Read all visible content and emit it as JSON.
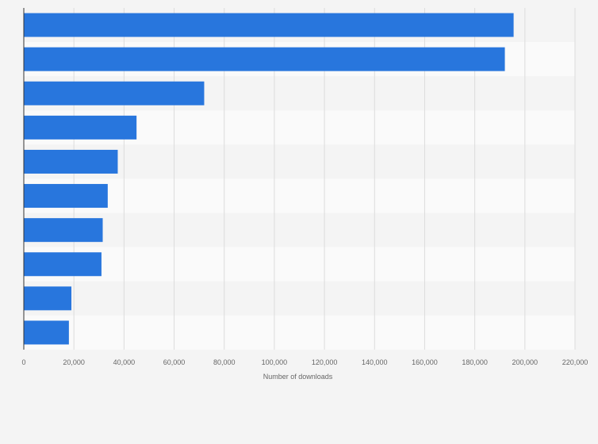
{
  "chart_data": {
    "type": "bar",
    "orientation": "horizontal",
    "categories": [
      "",
      "",
      "",
      "",
      "",
      "",
      "",
      "",
      "",
      ""
    ],
    "values": [
      195500,
      192000,
      72000,
      45000,
      37500,
      33500,
      31500,
      31000,
      19000,
      18000
    ],
    "xlabel": "Number of downloads",
    "xlim": [
      0,
      220000
    ],
    "xticks": [
      0,
      20000,
      40000,
      60000,
      80000,
      100000,
      120000,
      140000,
      160000,
      180000,
      200000,
      220000
    ],
    "xtick_labels": [
      "0",
      "20,000",
      "40,000",
      "60,000",
      "80,000",
      "100,000",
      "120,000",
      "140,000",
      "160,000",
      "180,000",
      "200,000",
      "220,000"
    ],
    "grid": true,
    "legend": "none",
    "bar_color": "#2876dd"
  }
}
